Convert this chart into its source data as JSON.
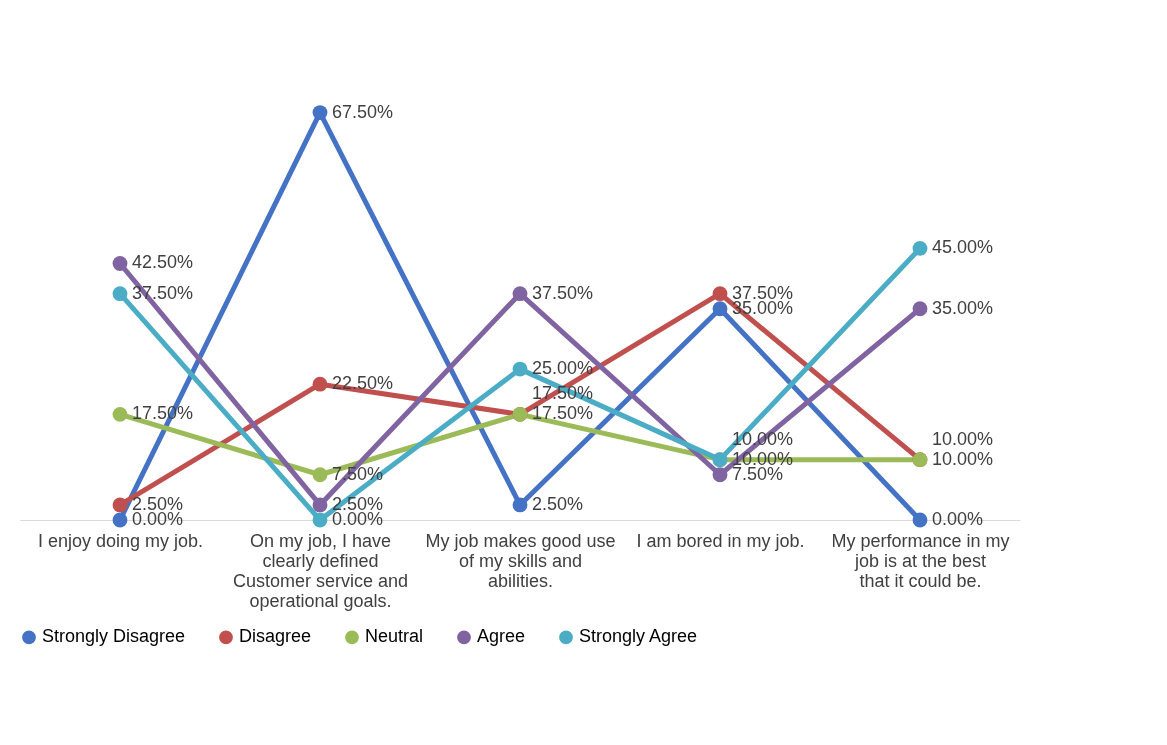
{
  "chart_data": {
    "type": "line",
    "categories": [
      "I enjoy doing my job.",
      "On my job, I have clearly defined Customer service and operational goals.",
      "My job makes good use of my skills and abilities.",
      "I am bored in my job.",
      "My performance in my job is at the best that it could be."
    ],
    "line_style": "solid",
    "marker": "circle",
    "legend": "bottom",
    "grid": false,
    "series": [
      {
        "name": "Strongly Disagree",
        "color": "#4472c4",
        "values": [
          0,
          67.5,
          2.5,
          35,
          0
        ],
        "value_labels": [
          "0.00%",
          "67.50%",
          "2.50%",
          "35.00%",
          "0.00%"
        ]
      },
      {
        "name": "Disagree",
        "color": "#c0504d",
        "values": [
          2.5,
          22.5,
          17.5,
          37.5,
          10
        ],
        "value_labels": [
          "2.50%",
          "22.50%",
          "17.50%",
          "37.50%",
          "10.00%"
        ]
      },
      {
        "name": "Neutral",
        "color": "#9bbb59",
        "values": [
          17.5,
          7.5,
          17.5,
          10,
          10
        ],
        "value_labels": [
          "17.50%",
          "7.50%",
          "17.50%",
          "10.00%",
          "10.00%"
        ]
      },
      {
        "name": "Agree",
        "color": "#8064a2",
        "values": [
          42.5,
          2.5,
          37.5,
          7.5,
          35
        ],
        "value_labels": [
          "42.50%",
          "2.50%",
          "37.50%",
          "7.50%",
          "35.00%"
        ]
      },
      {
        "name": "Strongly Agree",
        "color": "#4bacc6",
        "values": [
          37.5,
          0,
          25,
          10,
          45
        ],
        "value_labels": [
          "37.50%",
          "0.00%",
          "25.00%",
          "10.00%",
          "45.00%"
        ]
      }
    ]
  }
}
